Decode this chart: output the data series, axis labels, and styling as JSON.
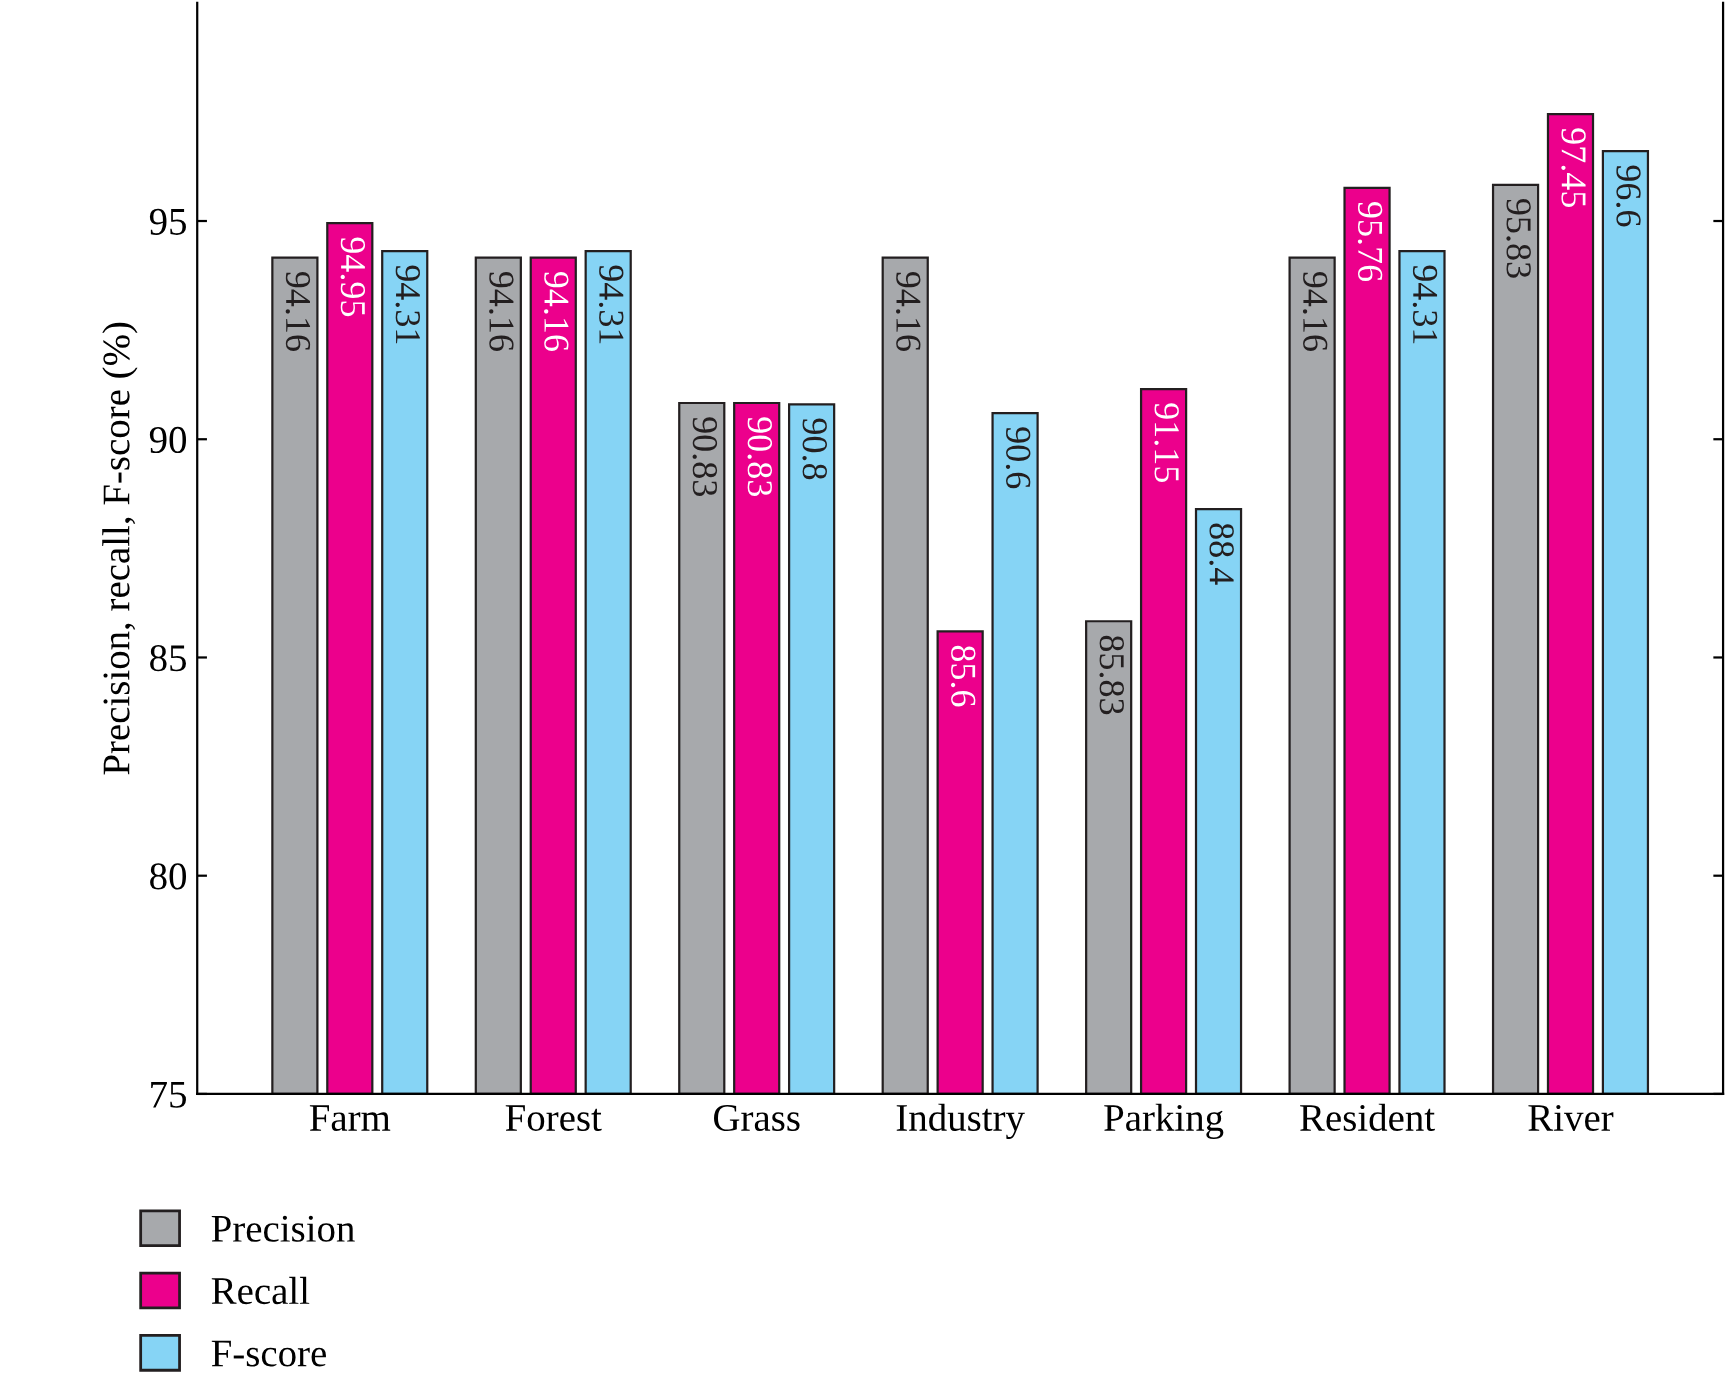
{
  "chart_data": {
    "type": "bar",
    "ylabel": "Precision, recall, F-score (%)",
    "categories": [
      "Farm",
      "Forest",
      "Grass",
      "Industry",
      "Parking",
      "Resident",
      "River"
    ],
    "series": [
      {
        "name": "Precision",
        "color": "#a7a9ac",
        "values": [
          94.16,
          94.16,
          90.83,
          94.16,
          85.83,
          94.16,
          95.83
        ]
      },
      {
        "name": "Recall",
        "color": "#ec008c",
        "values": [
          94.95,
          94.16,
          90.83,
          85.6,
          91.15,
          95.76,
          97.45
        ]
      },
      {
        "name": "F-score",
        "color": "#86d4f5",
        "values": [
          94.31,
          94.31,
          90.8,
          90.6,
          88.4,
          94.31,
          96.6
        ]
      }
    ],
    "ylim": [
      75,
      100
    ],
    "yticks": [
      75,
      80,
      85,
      90,
      95
    ],
    "data_labels": true,
    "legend": "bottom left",
    "grid": false
  }
}
